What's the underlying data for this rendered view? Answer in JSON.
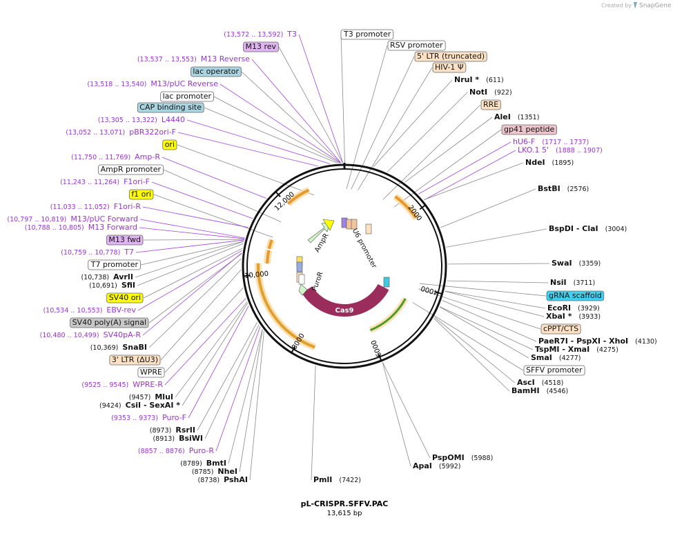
{
  "header": {
    "credit": "Created by",
    "brand": "SnapGene"
  },
  "labels": [
    {
      "name": "T3",
      "loc": "(13,572 .. 13,592)"
    },
    {
      "name": "M13 rev"
    },
    {
      "name": "M13 Reverse",
      "loc": "(13,537 .. 13,553)"
    },
    {
      "name": "lac operator"
    },
    {
      "name": "M13/pUC Reverse",
      "loc": "(13,518 .. 13,540)"
    },
    {
      "name": "lac promoter"
    },
    {
      "name": "CAP binding site"
    },
    {
      "name": "L4440",
      "loc": "(13,305 .. 13,322)"
    },
    {
      "name": "pBR322ori-F",
      "loc": "(13,052 .. 13,071)"
    },
    {
      "name": "ori"
    },
    {
      "name": "Amp-R",
      "loc": "(11,750 .. 11,769)"
    },
    {
      "name": "AmpR promoter"
    },
    {
      "name": "F1ori-F",
      "loc": "(11,243 .. 11,264)"
    },
    {
      "name": "f1 ori"
    },
    {
      "name": "F1ori-R",
      "loc": "(11,033 .. 11,052)"
    },
    {
      "name": "M13/pUC Forward",
      "loc": "(10,797 .. 10,819)"
    },
    {
      "name": "M13 Forward",
      "loc": "(10,788 .. 10,805)"
    },
    {
      "name": "M13 fwd"
    },
    {
      "name": "T7",
      "loc": "(10,759 .. 10,778)"
    },
    {
      "name": "T7 promoter"
    },
    {
      "name": "AvrII",
      "loc": "(10,738)"
    },
    {
      "name": "SfiI",
      "loc": "(10,691)"
    },
    {
      "name": "SV40 ori"
    },
    {
      "name": "EBV-rev",
      "loc": "(10,534 .. 10,553)"
    },
    {
      "name": "SV40 poly(A) signal"
    },
    {
      "name": "SV40pA-R",
      "loc": "(10,480 .. 10,499)"
    },
    {
      "name": "SnaBI",
      "loc": "(10,369)"
    },
    {
      "name": "3' LTR (ΔU3)"
    },
    {
      "name": "WPRE"
    },
    {
      "name": "WPRE-R",
      "loc": "(9525 .. 9545)"
    },
    {
      "name": "MluI",
      "loc": "(9457)"
    },
    {
      "name": "CsiI - SexAI *",
      "loc": "(9424)"
    },
    {
      "name": "Puro-F",
      "loc": "(9353 .. 9373)"
    },
    {
      "name": "RsrII",
      "loc": "(8973)"
    },
    {
      "name": "BsiWI",
      "loc": "(8913)"
    },
    {
      "name": "Puro-R",
      "loc": "(8857 .. 8876)"
    },
    {
      "name": "BmtI",
      "loc": "(8789)"
    },
    {
      "name": "NheI",
      "loc": "(8785)"
    },
    {
      "name": "PshAI",
      "loc": "(8738)"
    },
    {
      "name": "PmlI",
      "loc": "(7422)"
    },
    {
      "name": "PspOMI",
      "loc": "(5988)"
    },
    {
      "name": "ApaI",
      "loc": "(5992)"
    },
    {
      "name": "T3 promoter"
    },
    {
      "name": "RSV promoter"
    },
    {
      "name": "5' LTR (truncated)"
    },
    {
      "name": "HIV-1 Ψ"
    },
    {
      "name": "NruI *",
      "loc": "(611)"
    },
    {
      "name": "NotI",
      "loc": "(922)"
    },
    {
      "name": "RRE"
    },
    {
      "name": "AleI",
      "loc": "(1351)"
    },
    {
      "name": "gp41 peptide"
    },
    {
      "name": "hU6-F",
      "loc": "(1717 .. 1737)"
    },
    {
      "name": "LKO.1 5'",
      "loc": "(1888 .. 1907)"
    },
    {
      "name": "NdeI",
      "loc": "(1895)"
    },
    {
      "name": "BstBI",
      "loc": "(2576)"
    },
    {
      "name": "BspDI - ClaI",
      "loc": "(3004)"
    },
    {
      "name": "SwaI",
      "loc": "(3359)"
    },
    {
      "name": "NsiI",
      "loc": "(3711)"
    },
    {
      "name": "gRNA scaffold"
    },
    {
      "name": "EcoRI",
      "loc": "(3929)"
    },
    {
      "name": "XbaI *",
      "loc": "(3933)"
    },
    {
      "name": "cPPT/CTS"
    },
    {
      "name": "PaeR7I - PspXI - XhoI",
      "loc": "(4130)"
    },
    {
      "name": "TspMI - XmaI",
      "loc": "(4275)"
    },
    {
      "name": "SmaI",
      "loc": "(4277)"
    },
    {
      "name": "SFFV promoter"
    },
    {
      "name": "AscI",
      "loc": "(4518)"
    },
    {
      "name": "BamHI",
      "loc": "(4546)"
    }
  ],
  "ring_ticks": [
    "2000",
    "4000",
    "6000",
    "8000",
    "10,000",
    "12,000"
  ],
  "map_labels": [
    "Cas9",
    "PuroR",
    "AmpR",
    "U6 promoter"
  ],
  "footer": {
    "name": "pL-CRISPR.SFFV.PAC",
    "size": "13,615 bp"
  }
}
